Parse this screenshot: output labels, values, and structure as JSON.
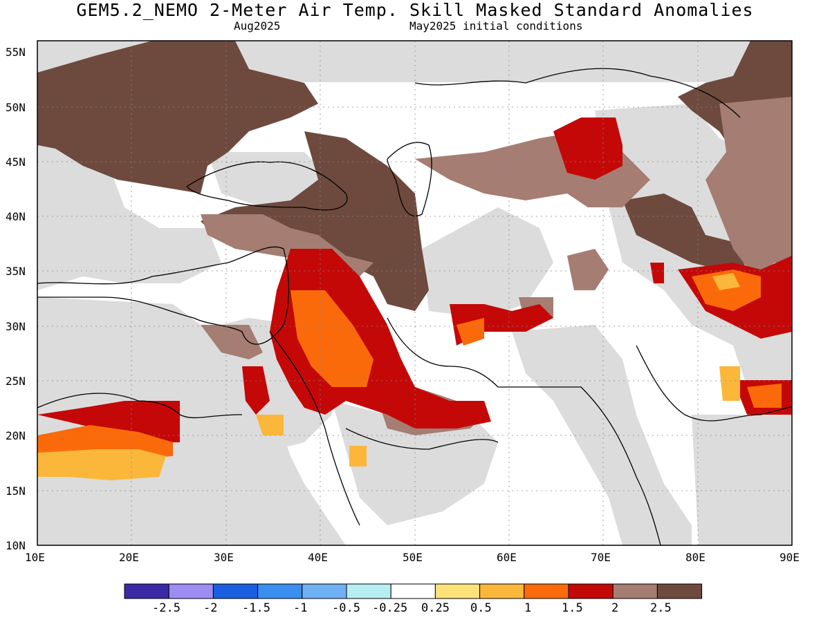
{
  "title": "GEM5.2_NEMO 2-Meter Air Temp. Skill Masked Standard Anomalies",
  "valid_month": "Aug2025",
  "init_conditions": "May2025 initial conditions",
  "lat_labels": [
    "55N",
    "50N",
    "45N",
    "40N",
    "35N",
    "30N",
    "25N",
    "20N",
    "15N",
    "10N"
  ],
  "lon_labels": [
    "10E",
    "20E",
    "30E",
    "40E",
    "50E",
    "60E",
    "70E",
    "80E",
    "90E"
  ],
  "colorbar": {
    "colors": [
      "#3a2aa8",
      "#9d8cf2",
      "#1a5fe0",
      "#3a8ef0",
      "#6fb0f2",
      "#b6eef2",
      "#ffffff",
      "#fde27a",
      "#fbb73a",
      "#fb6a0a",
      "#c40808",
      "#a57d73",
      "#6e4a3e"
    ],
    "ticks": [
      "-2.5",
      "-2",
      "-1.5",
      "-1",
      "-0.5",
      "-0.25",
      "0.25",
      "0.5",
      "1",
      "1.5",
      "2",
      "2.5"
    ]
  },
  "colors": {
    "skill_masked": "#dcdcdc",
    "land_sea_lines": "#000000"
  }
}
